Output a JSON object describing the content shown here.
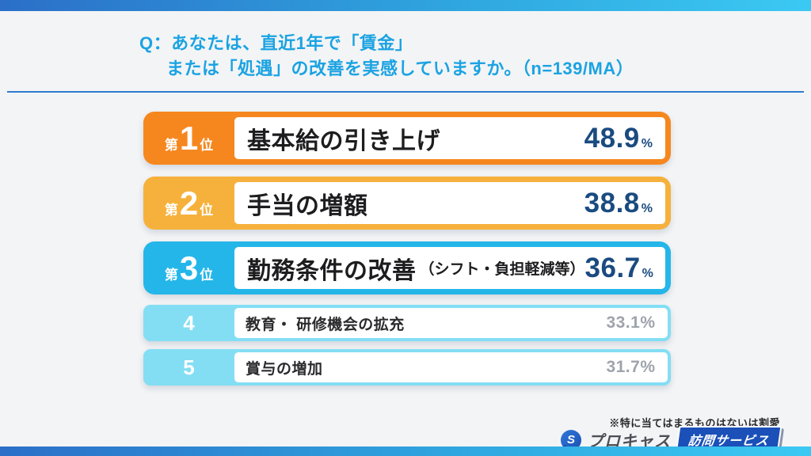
{
  "header": {
    "question_line1": "Q：あなたは、直近1年で「賃金」",
    "question_line2": "または「処遇」の改善を実感していますか。（n=139/MA）"
  },
  "chart_data": {
    "type": "bar",
    "title": "あなたは、直近1年で「賃金」または「処遇」の改善を実感していますか。",
    "sample_note": "n=139/MA",
    "categories": [
      "基本給の引き上げ",
      "手当の増額",
      "勤務条件の改善（シフト・負担軽減等）",
      "教育・ 研修機会の拡充",
      "賞与の増加"
    ],
    "values": [
      48.9,
      38.8,
      36.7,
      33.1,
      31.7
    ],
    "unit": "%",
    "xlabel": "",
    "ylabel": "",
    "layout": "ranked horizontal list, top-3 highlighted"
  },
  "ranking": {
    "rank_prefix": "第",
    "rank_suffix": "位",
    "items": [
      {
        "rank": "1",
        "label": "基本給の引き上げ",
        "label_note": "",
        "value": "48.9",
        "unit": "%",
        "badge_color": "#F6871F"
      },
      {
        "rank": "2",
        "label": "手当の増額",
        "label_note": "",
        "value": "38.8",
        "unit": "%",
        "badge_color": "#F6B13C"
      },
      {
        "rank": "3",
        "label": "勤務条件の改善",
        "label_note": "（シフト・負担軽減等）",
        "value": "36.7",
        "unit": "%",
        "badge_color": "#25B6E9"
      },
      {
        "rank": "4",
        "label": "教育・ 研修機会の拡充",
        "label_note": "",
        "value": "33.1",
        "unit": "%",
        "badge_color": "#83DEF4"
      },
      {
        "rank": "5",
        "label": "賞与の増加",
        "label_note": "",
        "value": "31.7",
        "unit": "%",
        "badge_color": "#83DEF4"
      }
    ]
  },
  "footer": {
    "note": "※特に当てはまるものはないは割愛",
    "logo_icon_letter": "S",
    "logo_text": "プロキャス",
    "logo_badge": "訪問サービス"
  },
  "colors": {
    "question_text": "#1BA3E2",
    "divider": "#2E7CCF",
    "rank1_badge": "#F6871F",
    "rank2_badge": "#F6B13C",
    "rank3_badge": "#25B6E9",
    "rank45_badge": "#83DEF4",
    "percent_top3": "#1A4B80",
    "percent_rank45": "#9EA3AC",
    "bar_gradient_left": "#2B6FC8",
    "bar_gradient_right": "#3BC9F2",
    "background": "#F3F4F6",
    "logo_badge_bg": "#1A50B8"
  }
}
